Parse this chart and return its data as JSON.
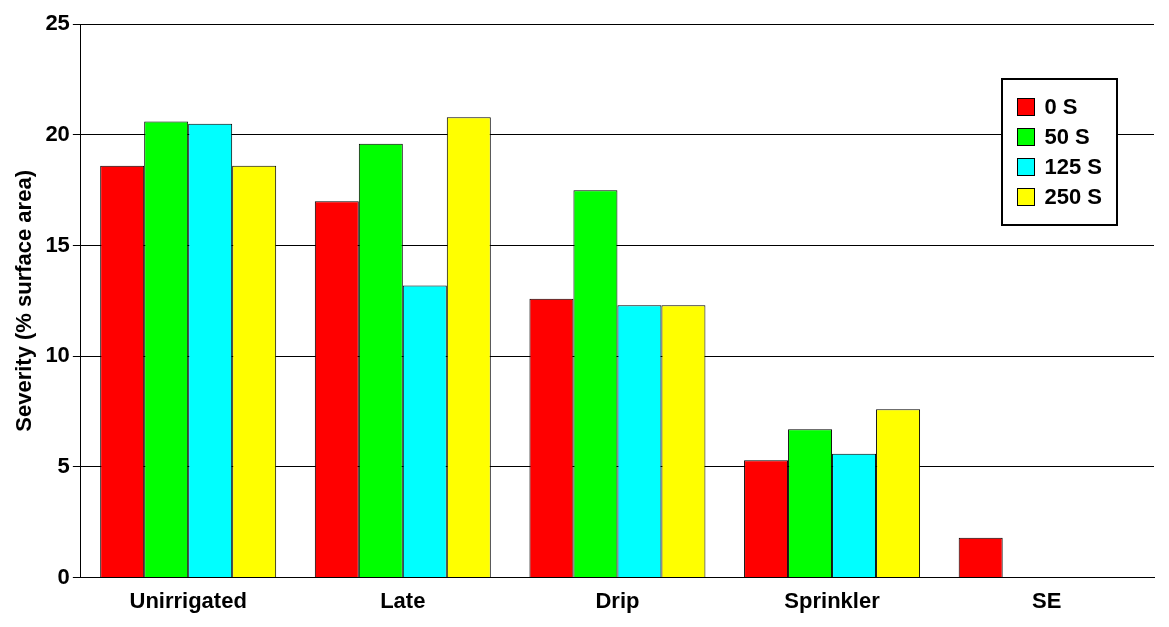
{
  "chart_data": {
    "type": "bar",
    "ylabel": "Severity (% surface area)",
    "categories": [
      "Unirrigated",
      "Late",
      "Drip",
      "Sprinkler",
      "SE"
    ],
    "series": [
      {
        "name": "0 S",
        "color": "#ff0000",
        "values": [
          18.6,
          17.0,
          12.6,
          5.3,
          1.8
        ]
      },
      {
        "name": "50 S",
        "color": "#00ff00",
        "values": [
          20.6,
          19.6,
          17.5,
          6.7,
          null
        ]
      },
      {
        "name": "125 S",
        "color": "#00ffff",
        "values": [
          20.5,
          13.2,
          12.3,
          5.6,
          null
        ]
      },
      {
        "name": "250 S",
        "color": "#ffff00",
        "values": [
          18.6,
          20.8,
          12.3,
          7.6,
          null
        ]
      }
    ],
    "ylim": [
      0,
      25
    ],
    "yticks": [
      0,
      5,
      10,
      15,
      20,
      25
    ],
    "grid": "y",
    "legend": "top right"
  }
}
